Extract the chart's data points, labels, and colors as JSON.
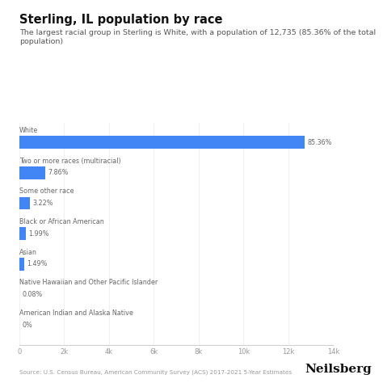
{
  "title": "Sterling, IL population by race",
  "subtitle": "The largest racial group in Sterling is White, with a population of 12,735 (85.36% of the total\npopulation)",
  "categories": [
    "White",
    "Two or more races (multiracial)",
    "Some other race",
    "Black or African American",
    "Asian",
    "Native Hawaiian and Other Pacific Islander",
    "American Indian and Alaska Native"
  ],
  "values": [
    12735,
    1171,
    480,
    297,
    222,
    12,
    0
  ],
  "percentages": [
    "85.36%",
    "7.86%",
    "3.22%",
    "1.99%",
    "1.49%",
    "0.08%",
    "0%"
  ],
  "bar_color": "#4285f4",
  "background_color": "#ffffff",
  "label_color": "#666666",
  "axis_color": "#cccccc",
  "title_color": "#111111",
  "subtitle_color": "#555555",
  "source_text": "Source: U.S. Census Bureau, American Community Survey (ACS) 2017-2021 5-Year Estimates",
  "brand_text": "Neilsberg",
  "xlim": [
    0,
    14000
  ],
  "xtick_vals": [
    0,
    2000,
    4000,
    6000,
    8000,
    10000,
    12000,
    14000
  ],
  "xtick_labels": [
    "0",
    "2k",
    "4k",
    "6k",
    "8k",
    "10k",
    "12k",
    "14k"
  ]
}
